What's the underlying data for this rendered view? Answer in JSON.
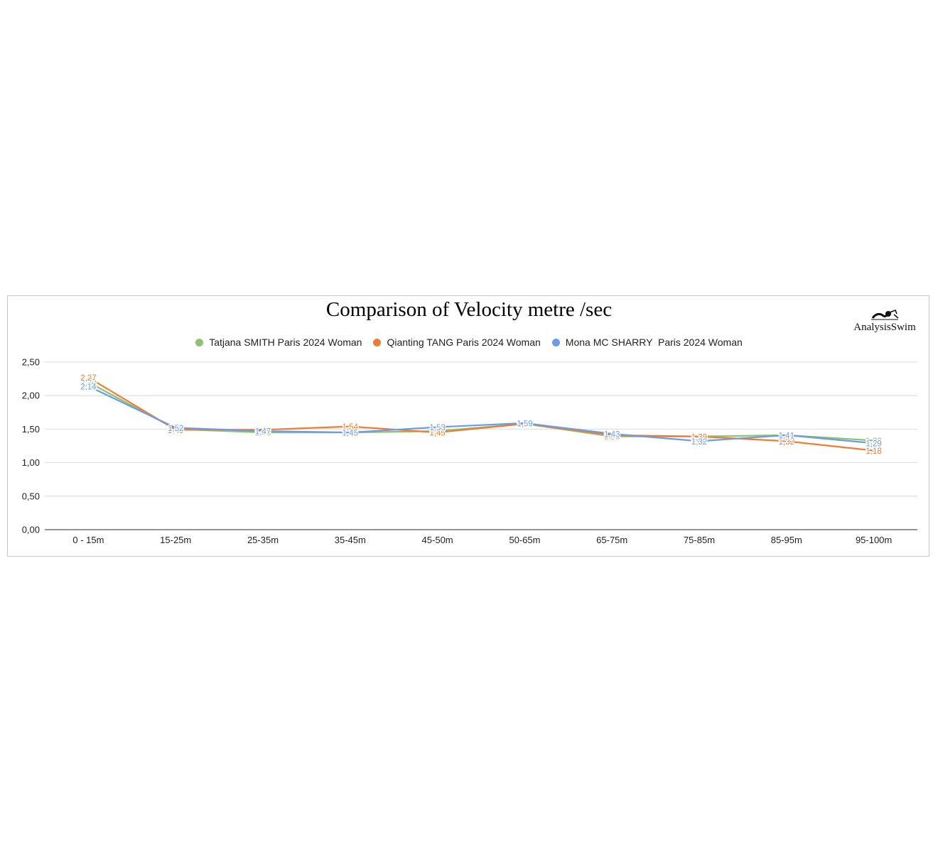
{
  "chart_data": {
    "type": "line",
    "title": "Comparison of Velocity metre /sec",
    "categories": [
      "0 - 15m",
      "15-25m",
      "25-35m",
      "35-45m",
      "45-50m",
      "50-65m",
      "65-75m",
      "75-85m",
      "85-95m",
      "95-100m"
    ],
    "y_ticks": [
      "0,00",
      "0,50",
      "1,00",
      "1,50",
      "2,00",
      "2,50"
    ],
    "ylim": [
      0,
      2.5
    ],
    "grid": true,
    "legend_position": "top",
    "series": [
      {
        "name": "Tatjana SMITH Paris 2024 Woman",
        "color": "#8dc26f",
        "values": [
          2.2,
          1.5,
          1.45,
          1.45,
          1.47,
          1.58,
          1.39,
          1.39,
          1.41,
          1.33
        ],
        "labels": [
          "2,20",
          "1,50",
          "1,45",
          "1,45",
          "1,47",
          "1,58",
          "1,39",
          "1,39",
          "1,41",
          "1,33"
        ]
      },
      {
        "name": "Qianting TANG Paris 2024 Woman",
        "color": "#ee7d31",
        "values": [
          2.27,
          1.49,
          1.49,
          1.54,
          1.45,
          1.58,
          1.41,
          1.39,
          1.32,
          1.18
        ],
        "labels": [
          "2,27",
          "1,49",
          "1,49",
          "1,54",
          "1,45",
          "1,58",
          "1,41",
          "1,39",
          "1,32",
          "1,18"
        ]
      },
      {
        "name": "Mona MC SHARRY  Paris 2024 Woman",
        "color": "#6d9be5",
        "values": [
          2.14,
          1.52,
          1.47,
          1.45,
          1.53,
          1.59,
          1.43,
          1.32,
          1.41,
          1.29
        ],
        "labels": [
          "2,14",
          "1,52",
          "1,47",
          "1,45",
          "1,53",
          "1,59",
          "1,43",
          "1,32",
          "1,41",
          "1,29"
        ]
      }
    ]
  },
  "logo": {
    "text": "AnalysisSwim",
    "icon": "swimmer-icon"
  }
}
